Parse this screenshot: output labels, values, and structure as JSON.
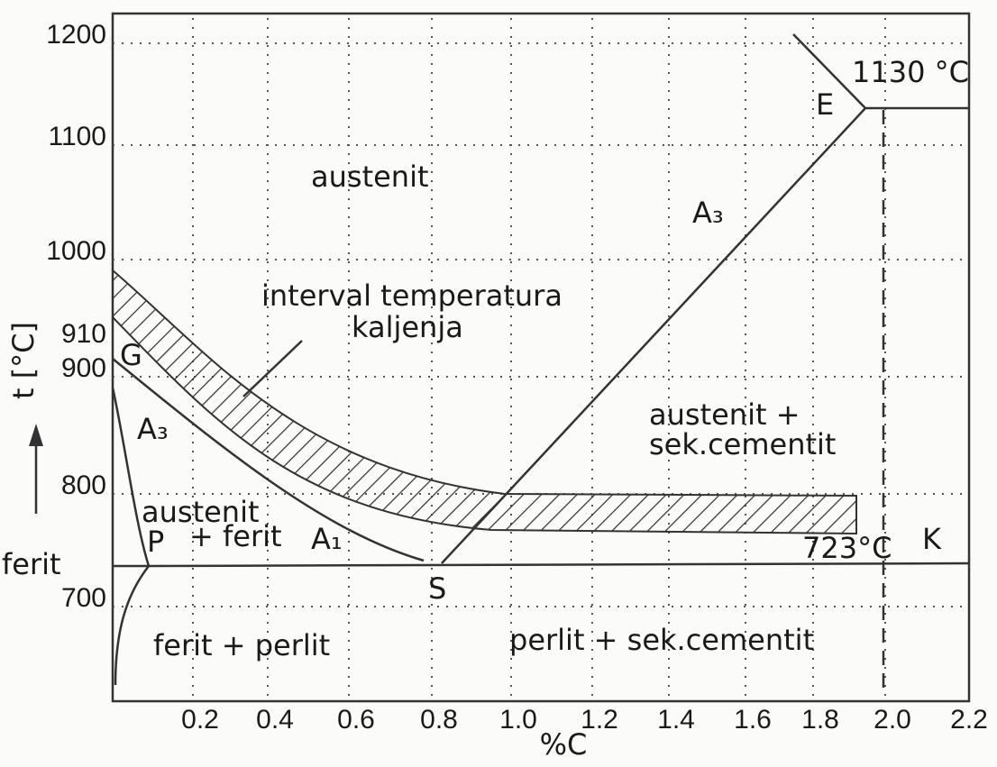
{
  "y_axis": {
    "label": "t [°C]",
    "ticks": [
      "1200",
      "1100",
      "1000",
      "910",
      "900",
      "800",
      "700"
    ],
    "side_label": "ferit"
  },
  "x_axis": {
    "label": "%C",
    "ticks": [
      "0.2",
      "0.4",
      "0.6",
      "0.8",
      "1.0",
      "1.2",
      "1.4",
      "1.6",
      "1.8",
      "2.0",
      "2.2"
    ]
  },
  "labels": [
    "austenit",
    "interval temperatura",
    "kaljenja",
    "A₃",
    "A₃",
    "G",
    "E",
    "1130 °C",
    "austenit +",
    "sek.cementit",
    "austenit",
    "+ ferit",
    "A₁",
    "P",
    "S",
    "723°C",
    "K",
    "ferit + perlit",
    "perlit + sek.cementit"
  ]
}
